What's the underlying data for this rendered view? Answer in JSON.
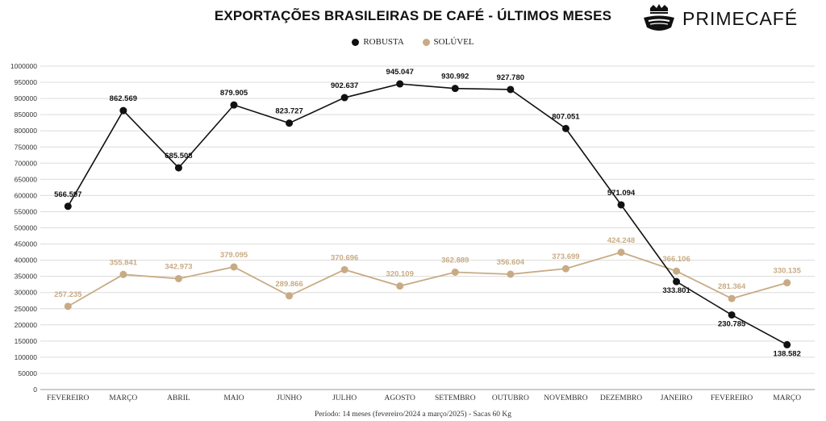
{
  "title": "EXPORTAÇÕES BRASILEIRAS DE CAFÉ - ÚLTIMOS MESES",
  "brand": {
    "name": "PRIMECAFÉ",
    "logo_icon": "coffee-cup-crown-icon"
  },
  "legend": [
    {
      "label": "ROBUSTA",
      "color": "#111111"
    },
    {
      "label": "SOLÚVEL",
      "color": "#c8ab84"
    }
  ],
  "footer": "Período: 14 meses (fevereiro/2024 a março/2025) - Sacas 60 Kg",
  "chart_data": {
    "type": "line",
    "categories": [
      "FEVEREIRO",
      "MARÇO",
      "ABRIL",
      "MAIO",
      "JUNHO",
      "JULHO",
      "AGOSTO",
      "SETEMBRO",
      "OUTUBRO",
      "NOVEMBRO",
      "DEZEMBRO",
      "JANEIRO",
      "FEVEREIRO",
      "MARÇO"
    ],
    "series": [
      {
        "name": "ROBUSTA",
        "color": "#111111",
        "values": [
          566597,
          862569,
          685508,
          879905,
          823727,
          902637,
          945047,
          930992,
          927780,
          807051,
          571094,
          333801,
          230785,
          138582
        ],
        "labels": [
          "566.597",
          "862.569",
          "685.508",
          "879.905",
          "823.727",
          "902.637",
          "945.047",
          "930.992",
          "927.780",
          "807.051",
          "571.094",
          "333.801",
          "230.785",
          "138.582"
        ]
      },
      {
        "name": "SOLÚVEL",
        "color": "#c8ab84",
        "values": [
          257235,
          355841,
          342973,
          379095,
          289866,
          370696,
          320109,
          362889,
          356604,
          373699,
          424248,
          366106,
          281364,
          330135
        ],
        "labels": [
          "257.235",
          "355.841",
          "342.973",
          "379.095",
          "289.866",
          "370.696",
          "320.109",
          "362.889",
          "356.604",
          "373.699",
          "424.248",
          "366.106",
          "281.364",
          "330.135"
        ]
      }
    ],
    "ylim": [
      0,
      1000000
    ],
    "yticks": [
      0,
      50000,
      100000,
      150000,
      200000,
      250000,
      300000,
      350000,
      400000,
      450000,
      500000,
      550000,
      600000,
      650000,
      700000,
      750000,
      800000,
      850000,
      900000,
      950000,
      1000000
    ],
    "grid": true,
    "legend_position": "top-center"
  }
}
